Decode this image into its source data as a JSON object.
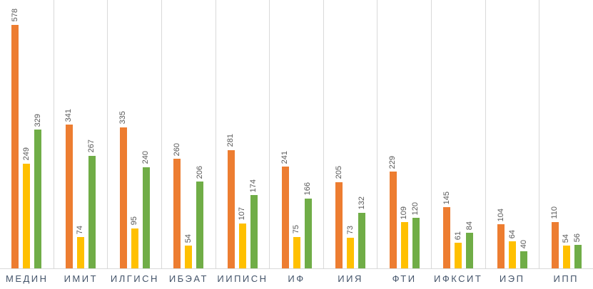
{
  "chart_data": {
    "type": "bar",
    "title": "",
    "xlabel": "",
    "ylabel": "",
    "categories": [
      "МЕДИН",
      "ИМИТ",
      "ИЛГИСН",
      "ИБЭАТ",
      "ИИПИСН",
      "ИФ",
      "ИИЯ",
      "ФТИ",
      "ИФКСИТ",
      "ИЭП",
      "ИПП"
    ],
    "series": [
      {
        "name": "series-1-orange",
        "color": "#ED7D31",
        "values": [
          578,
          341,
          335,
          260,
          281,
          241,
          205,
          229,
          145,
          104,
          110
        ]
      },
      {
        "name": "series-2-yellow",
        "color": "#FFC000",
        "values": [
          249,
          74,
          95,
          54,
          107,
          75,
          73,
          109,
          61,
          64,
          54
        ]
      },
      {
        "name": "series-3-green",
        "color": "#70AD47",
        "values": [
          329,
          267,
          240,
          206,
          174,
          166,
          132,
          120,
          84,
          40,
          56
        ]
      }
    ],
    "ylim": [
      0,
      638
    ],
    "grid": "vertical-category-separators-only",
    "legend": "none",
    "value_labels": "rotated-90-above-bars",
    "axis_line_color": "#D9D9D9",
    "value_label_color": "#595959",
    "category_label_color": "#44546A"
  }
}
